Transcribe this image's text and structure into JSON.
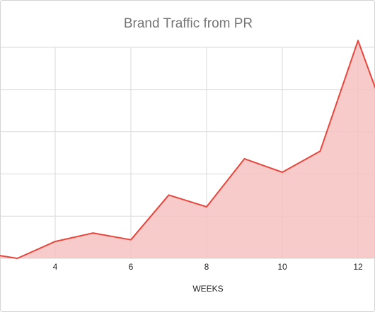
{
  "chart_data": {
    "type": "area",
    "title": "Brand Traffic from PR",
    "xlabel": "WEEKS",
    "ylabel": "",
    "x": [
      1,
      2,
      3,
      4,
      5,
      6,
      7,
      8,
      9,
      10,
      11,
      12,
      13
    ],
    "values": [
      5,
      7,
      0,
      20,
      30,
      22,
      75,
      61,
      118,
      102,
      127,
      258,
      135
    ],
    "x_tick_labels": [
      "4",
      "6",
      "8",
      "10",
      "12"
    ],
    "x_tick_values": [
      4,
      6,
      8,
      10,
      12
    ],
    "xlim": [
      2,
      12.4
    ],
    "ylim": [
      0,
      250
    ],
    "y_gridlines": [
      0,
      50,
      100,
      150,
      200,
      250
    ],
    "grid": true,
    "line_color": "#e8463c",
    "fill_color": "#f6c2c0"
  }
}
